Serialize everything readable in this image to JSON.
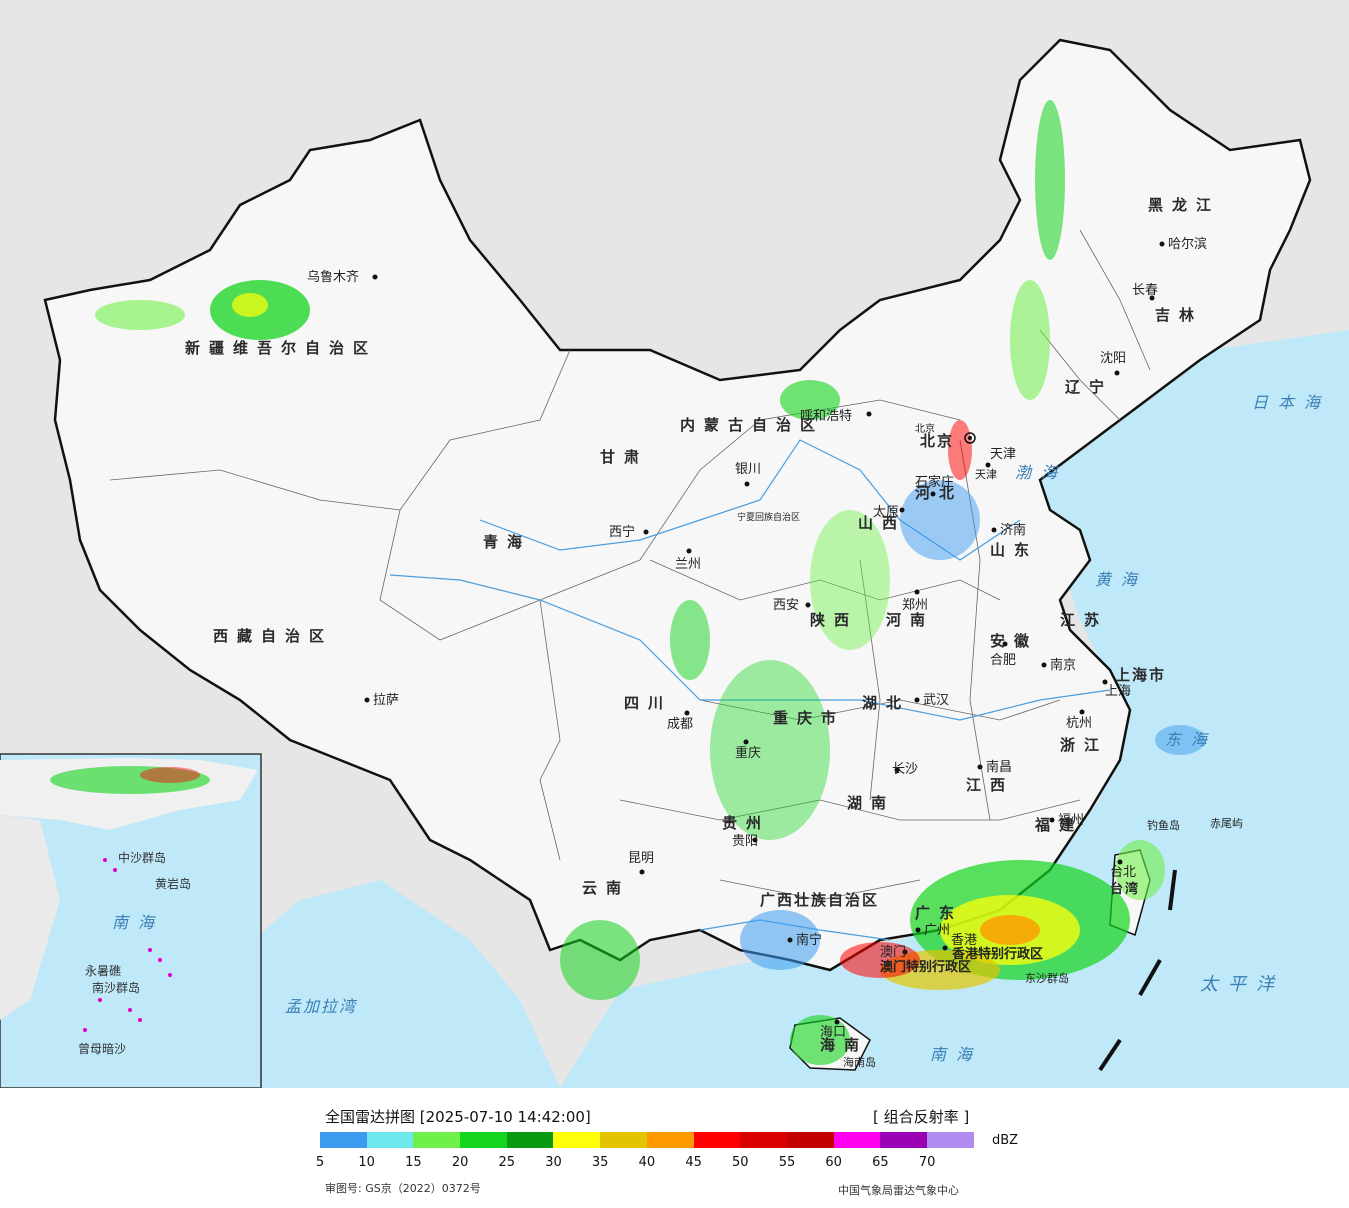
{
  "map": {
    "provinces": [
      {
        "name": "新疆维吾尔自治区",
        "letter": true
      },
      {
        "name": "西藏自治区"
      },
      {
        "name": "青海"
      },
      {
        "name": "甘肃"
      },
      {
        "name": "内蒙古自治区"
      },
      {
        "name": "黑龙江"
      },
      {
        "name": "吉林"
      },
      {
        "name": "辽宁"
      },
      {
        "name": "河北"
      },
      {
        "name": "山西"
      },
      {
        "name": "山东"
      },
      {
        "name": "河南"
      },
      {
        "name": "陕西"
      },
      {
        "name": "四川"
      },
      {
        "name": "重庆市"
      },
      {
        "name": "湖北"
      },
      {
        "name": "湖南"
      },
      {
        "name": "江西"
      },
      {
        "name": "安徽"
      },
      {
        "name": "江苏"
      },
      {
        "name": "浙江"
      },
      {
        "name": "福建"
      },
      {
        "name": "贵州"
      },
      {
        "name": "云南"
      },
      {
        "name": "广西壮族自治区"
      },
      {
        "name": "广东"
      },
      {
        "name": "海南"
      },
      {
        "name": "台湾"
      },
      {
        "name": "宁夏回族自治区"
      },
      {
        "name": "上海市"
      },
      {
        "name": "天津"
      },
      {
        "name": "北京"
      }
    ],
    "cities": [
      "乌鲁木齐",
      "拉萨",
      "西宁",
      "兰州",
      "银川",
      "呼和浩特",
      "哈尔滨",
      "长春",
      "沈阳",
      "北京",
      "天津",
      "石家庄",
      "太原",
      "济南",
      "郑州",
      "西安",
      "合肥",
      "南京",
      "上海",
      "杭州",
      "武汉",
      "成都",
      "重庆",
      "长沙",
      "南昌",
      "福州",
      "台北",
      "贵阳",
      "昆明",
      "南宁",
      "广州",
      "香港",
      "澳门",
      "海口",
      "海南岛",
      "钓鱼岛",
      "赤尾屿"
    ],
    "seas": [
      "日本海",
      "渤海",
      "黄海",
      "东海",
      "太平洋",
      "南海",
      "孟加拉湾"
    ],
    "special_regions": [
      "香港特别行政区",
      "澳门特别行政区",
      "东沙群岛"
    ],
    "inset": {
      "labels": [
        "中沙群岛",
        "黄岩岛",
        "南海",
        "永暑礁",
        "南沙群岛",
        "曾母暗沙"
      ]
    }
  },
  "legend": {
    "title": "全国雷达拼图 [2025-07-10 14:42:00]",
    "product": "[ 组合反射率 ]",
    "unit": "dBZ",
    "ticks": [
      "5",
      "10",
      "15",
      "20",
      "25",
      "30",
      "35",
      "40",
      "45",
      "50",
      "55",
      "60",
      "65",
      "70"
    ],
    "colors": [
      "#3d9cf0",
      "#6de8ee",
      "#6ff04a",
      "#14d41d",
      "#0a9a12",
      "#ffff0c",
      "#e2c402",
      "#ff9a00",
      "#ff0000",
      "#d80000",
      "#c20000",
      "#ff00f0",
      "#9a00b4",
      "#b08cf0"
    ],
    "review_no": "审图号: GS京（2022）0372号",
    "source": "中国气象局雷达气象中心"
  }
}
